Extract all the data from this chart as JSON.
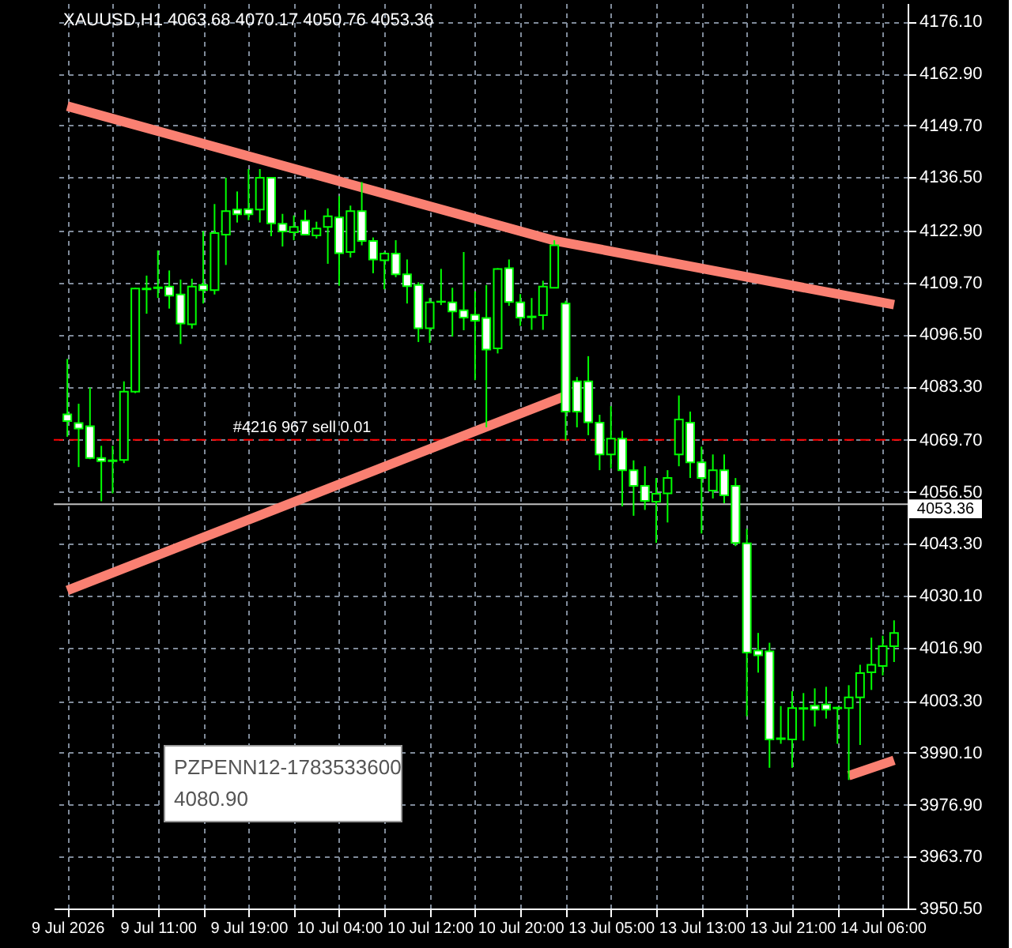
{
  "chart_data": {
    "type": "candlestick",
    "title": "XAUUSD,H1  4063.68 4070.17 4050.76 4053.36",
    "categories": [
      "9 Jul 2026",
      null,
      null,
      null,
      null,
      null,
      null,
      null,
      "9 Jul 11:00",
      null,
      null,
      null,
      null,
      null,
      null,
      null,
      "9 Jul 19:00",
      null,
      null,
      null,
      null,
      null,
      null,
      null,
      "10 Jul 04:00",
      null,
      null,
      null,
      null,
      null,
      null,
      null,
      "10 Jul 12:00",
      null,
      null,
      null,
      null,
      null,
      null,
      null,
      "10 Jul 20:00",
      null,
      null,
      null,
      null,
      null,
      null,
      null,
      "13 Jul 05:00",
      null,
      null,
      null,
      null,
      null,
      null,
      null,
      "13 Jul 13:00",
      null,
      null,
      null,
      null,
      null,
      null,
      null,
      "13 Jul 21:00",
      null,
      null,
      null,
      null,
      null,
      null,
      null,
      "14 Jul 06:00",
      null
    ],
    "color": "#00ff00",
    "ohlc": [
      [
        4076.2,
        4090.3,
        4070.5,
        4074.5
      ],
      [
        4074.0,
        4078.9,
        4062.8,
        4072.6
      ],
      [
        4073.2,
        4083.0,
        4064.8,
        4065.1
      ],
      [
        4065.1,
        4068.2,
        4054.1,
        4064.3
      ],
      [
        4064.3,
        4068.2,
        4056.1,
        4064.5
      ],
      [
        4064.6,
        4084.6,
        4063.8,
        4082.0
      ],
      [
        4082.0,
        4108.4,
        4081.6,
        4108.2
      ],
      [
        4108.0,
        4111.5,
        4101.8,
        4108.2
      ],
      [
        4108.3,
        4117.9,
        4105.8,
        4108.5
      ],
      [
        4108.7,
        4112.8,
        4103.1,
        4106.4
      ],
      [
        4106.7,
        4110.5,
        4094.1,
        4099.3
      ],
      [
        4099.1,
        4110.7,
        4098.0,
        4108.7
      ],
      [
        4109.1,
        4122.8,
        4104.4,
        4107.8
      ],
      [
        4107.8,
        4129.7,
        4106.7,
        4122.3
      ],
      [
        4121.9,
        4136.4,
        4114.2,
        4127.9
      ],
      [
        4128.3,
        4132.9,
        4125.0,
        4127.1
      ],
      [
        4128.4,
        4138.6,
        4125.6,
        4127.1
      ],
      [
        4128.3,
        4138.6,
        4125.0,
        4136.4
      ],
      [
        4136.4,
        4136.6,
        4121.5,
        4124.8
      ],
      [
        4124.7,
        4127.2,
        4118.9,
        4122.7
      ],
      [
        4122.5,
        4126.8,
        4120.5,
        4123.9
      ],
      [
        4125.5,
        4128.2,
        4121.9,
        4121.9
      ],
      [
        4121.7,
        4125.2,
        4120.9,
        4123.5
      ],
      [
        4123.9,
        4128.6,
        4114.5,
        4126.6
      ],
      [
        4126.3,
        4131.7,
        4108.9,
        4117.2
      ],
      [
        4117.5,
        4129.3,
        4116.1,
        4127.9
      ],
      [
        4127.9,
        4135.3,
        4119.2,
        4120.3
      ],
      [
        4120.3,
        4121.2,
        4112.1,
        4115.6
      ],
      [
        4115.4,
        4117.5,
        4108.0,
        4117.1
      ],
      [
        4117.1,
        4120.5,
        4111.1,
        4111.8
      ],
      [
        4111.8,
        4115.6,
        4104.4,
        4108.8
      ],
      [
        4109.1,
        4109.8,
        4094.6,
        4098.1
      ],
      [
        4098.1,
        4105.8,
        4094.4,
        4104.7
      ],
      [
        4104.8,
        4113.2,
        4104.0,
        4104.9
      ],
      [
        4104.7,
        4108.4,
        4096.0,
        4102.4
      ],
      [
        4102.7,
        4117.5,
        4097.6,
        4100.8
      ],
      [
        4101.5,
        4107.5,
        4084.9,
        4100.0
      ],
      [
        4100.7,
        4109.1,
        4072.9,
        4092.7
      ],
      [
        4093.0,
        4113.4,
        4091.7,
        4113.2
      ],
      [
        4113.4,
        4115.6,
        4103.8,
        4104.8
      ],
      [
        4104.7,
        4106.8,
        4098.7,
        4100.8
      ],
      [
        4100.9,
        4105.8,
        4097.7,
        4101.1
      ],
      [
        4101.4,
        4110.2,
        4097.7,
        4108.7
      ],
      [
        4108.4,
        4120.5,
        4108.4,
        4119.2
      ],
      [
        4104.4,
        4105.1,
        4069.6,
        4076.9
      ],
      [
        4084.6,
        4085.7,
        4072.9,
        4076.9
      ],
      [
        4084.6,
        4091.0,
        4070.9,
        4074.2
      ],
      [
        4074.1,
        4076.1,
        4062.0,
        4066.0
      ],
      [
        4066.0,
        4078.3,
        4062.5,
        4070.0
      ],
      [
        4070.0,
        4072.0,
        4052.8,
        4062.0
      ],
      [
        4062.0,
        4064.5,
        4050.4,
        4058.0
      ],
      [
        4058.0,
        4063.0,
        4051.9,
        4054.2
      ],
      [
        4054.0,
        4060.0,
        4043.5,
        4056.0
      ],
      [
        4056.1,
        4062.0,
        4048.7,
        4060.0
      ],
      [
        4066.0,
        4081.0,
        4063.0,
        4074.9
      ],
      [
        4074.1,
        4076.9,
        4060.0,
        4064.0
      ],
      [
        4064.0,
        4068.0,
        4045.9,
        4060.0
      ],
      [
        4056.8,
        4066.0,
        4054.8,
        4062.0
      ],
      [
        4062.0,
        4066.0,
        4053.6,
        4055.6
      ],
      [
        4058.0,
        4060.0,
        4042.7,
        4043.5
      ],
      [
        4043.4,
        4047.1,
        3999.4,
        4015.6
      ],
      [
        4016.1,
        4020.6,
        4010.5,
        4014.9
      ],
      [
        4015.9,
        4018.1,
        3986.3,
        3993.5
      ],
      [
        3993.6,
        4002.0,
        3992.4,
        3993.8
      ],
      [
        3993.5,
        4005.8,
        3986.3,
        4001.5
      ],
      [
        4001.3,
        4005.3,
        3993.2,
        4001.5
      ],
      [
        4002.1,
        4006.5,
        3996.8,
        4001.1
      ],
      [
        4002.4,
        4006.9,
        3998.8,
        4001.1
      ],
      [
        4001.4,
        4001.8,
        3992.4,
        4001.6
      ],
      [
        4001.5,
        4007.3,
        3983.2,
        4004.2
      ],
      [
        4004.2,
        4012.5,
        3992.1,
        4010.4
      ],
      [
        4010.6,
        4019.4,
        4006.1,
        4012.5
      ],
      [
        4012.2,
        4019.9,
        4009.8,
        4017.2
      ],
      [
        4017.2,
        4023.8,
        4013.2,
        4020.6
      ]
    ],
    "series": [
      {
        "type": "line",
        "color": "#fa8072",
        "values": [
          4154.6,
          null,
          null,
          null,
          null,
          null,
          null,
          null,
          null,
          null,
          null,
          null,
          null,
          null,
          null,
          null,
          null,
          null,
          null,
          null,
          null,
          null,
          null,
          null,
          null,
          null,
          null,
          null,
          null,
          null,
          null,
          null,
          null,
          null,
          null,
          null,
          null,
          null,
          null,
          null,
          null,
          null,
          null,
          4120.4,
          null,
          null,
          null,
          null,
          null,
          null,
          null,
          null,
          null,
          null,
          null,
          null,
          null,
          null,
          null,
          null,
          null,
          null,
          null,
          null,
          null,
          null,
          null,
          null,
          null,
          null,
          null,
          null,
          null,
          4104.1
        ]
      },
      {
        "type": "line",
        "color": "#fa8072",
        "values": [
          4031.4,
          null,
          null,
          null,
          null,
          null,
          null,
          null,
          null,
          null,
          null,
          null,
          null,
          null,
          null,
          null,
          null,
          null,
          null,
          null,
          null,
          null,
          null,
          null,
          null,
          null,
          null,
          null,
          null,
          null,
          null,
          null,
          null,
          null,
          null,
          null,
          null,
          null,
          null,
          null,
          null,
          null,
          null,
          null,
          4080.9,
          null,
          null,
          null,
          null,
          null,
          null,
          null,
          null,
          null,
          null,
          null,
          null,
          null,
          null,
          null,
          null,
          null,
          null,
          null,
          null,
          null,
          null,
          null,
          null,
          null,
          null,
          null,
          null,
          null
        ]
      },
      {
        "type": "line",
        "color": "#fa8072",
        "values": [
          null,
          null,
          null,
          null,
          null,
          null,
          null,
          null,
          null,
          null,
          null,
          null,
          null,
          null,
          null,
          null,
          null,
          null,
          null,
          null,
          null,
          null,
          null,
          null,
          null,
          null,
          null,
          null,
          null,
          null,
          null,
          null,
          null,
          null,
          null,
          null,
          null,
          null,
          null,
          null,
          null,
          null,
          null,
          null,
          null,
          null,
          null,
          null,
          null,
          null,
          null,
          null,
          null,
          null,
          null,
          null,
          null,
          null,
          null,
          null,
          null,
          null,
          null,
          null,
          null,
          null,
          null,
          null,
          null,
          3984.3,
          null,
          null,
          null,
          3988.2
        ]
      }
    ],
    "ylim": [
      3950.5,
      4180.8
    ],
    "yticks": [
      {
        "value": 4176.1,
        "label": "4176.10"
      },
      {
        "value": 4162.9,
        "label": "4162.90"
      },
      {
        "value": 4149.7,
        "label": "4149.70"
      },
      {
        "value": 4136.5,
        "label": "4136.50"
      },
      {
        "value": 4122.9,
        "label": "4122.90"
      },
      {
        "value": 4109.7,
        "label": "4109.70"
      },
      {
        "value": 4096.5,
        "label": "4096.50"
      },
      {
        "value": 4083.3,
        "label": "4083.30"
      },
      {
        "value": 4069.7,
        "label": "4069.70"
      },
      {
        "value": 4056.5,
        "label": "4056.50"
      },
      {
        "value": 4043.3,
        "label": "4043.30"
      },
      {
        "value": 4030.1,
        "label": "4030.10"
      },
      {
        "value": 4016.9,
        "label": "4016.90"
      },
      {
        "value": 4003.3,
        "label": "4003.30"
      },
      {
        "value": 3990.1,
        "label": "3990.10"
      },
      {
        "value": 3976.9,
        "label": "3976.90"
      },
      {
        "value": 3963.7,
        "label": "3963.70"
      },
      {
        "value": 3950.5,
        "label": "3950.50"
      }
    ],
    "grid": true,
    "ref_lines": [
      {
        "axis": "y",
        "value": 4069.7,
        "label": "#4216 967 sell 0.01",
        "color": "#ff0000",
        "line_style": "dashed"
      },
      {
        "axis": "y",
        "value": 4053.36,
        "label": "4053.36",
        "color": "#c0c0c0",
        "line_style": "solid"
      }
    ],
    "annotations": [
      "PZPENN12-1783533600",
      "4080.90"
    ]
  }
}
